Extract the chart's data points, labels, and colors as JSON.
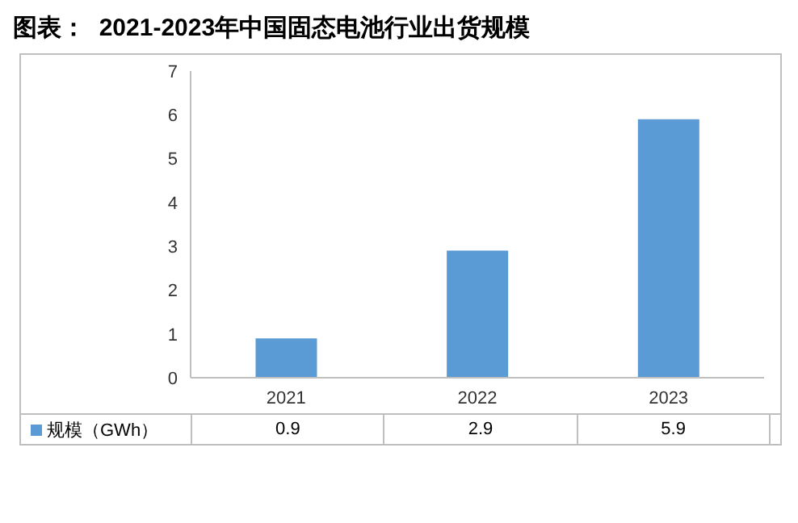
{
  "chart_data": {
    "type": "bar",
    "title": "图表：  2021-2023年中国固态电池行业出货规模",
    "categories": [
      "2021",
      "2022",
      "2023"
    ],
    "series": [
      {
        "name": "规模（GWh）",
        "color": "#5b9bd5",
        "values": [
          0.9,
          2.9,
          5.9
        ]
      }
    ],
    "ylim": [
      0,
      7
    ],
    "yticks": [
      0,
      1,
      2,
      3,
      4,
      5,
      6,
      7
    ],
    "grid": false,
    "legend": "bottom",
    "data_labels": true
  }
}
